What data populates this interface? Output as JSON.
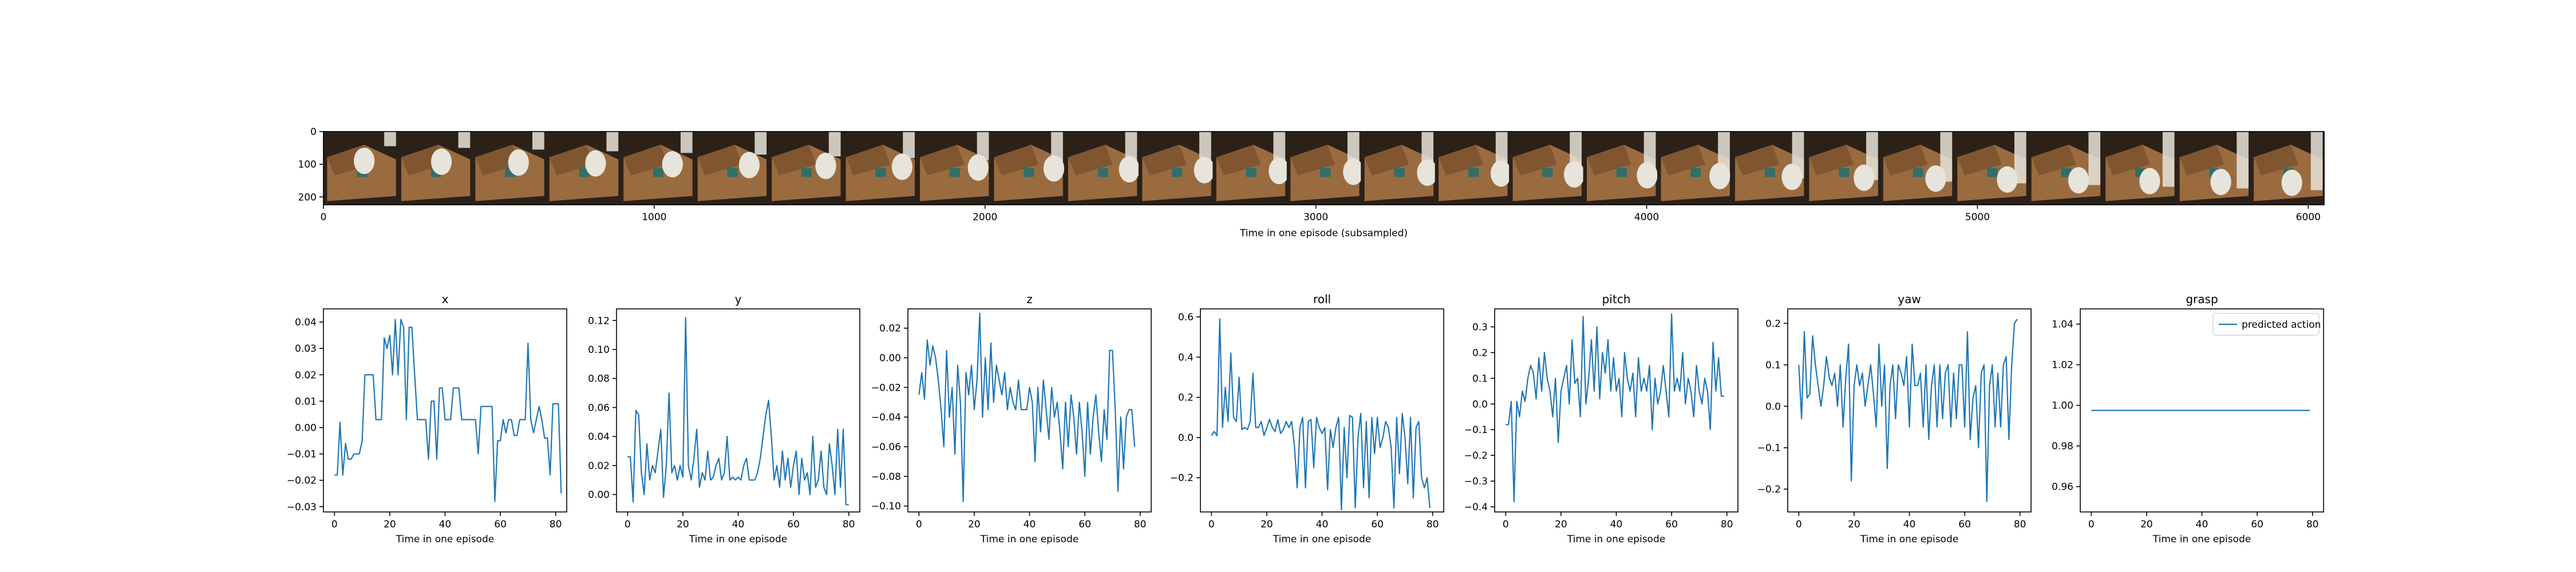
{
  "chart_data": [
    {
      "type": "image-strip",
      "xlabel": "Time in one episode (subsampled)",
      "xticks": [
        0,
        1000,
        2000,
        3000,
        4000,
        5000,
        6000
      ],
      "yticks": [
        0,
        100,
        200
      ],
      "xlim": [
        0,
        6048
      ],
      "ylim": [
        224,
        0
      ],
      "frame_count": 27,
      "image_colors": {
        "box": "#9a6b3f",
        "box_dark": "#6b4627",
        "arm": "#e7e4dc",
        "dark": "#2b2119",
        "label": "#2f6f6a"
      }
    },
    {
      "type": "line",
      "title": "x",
      "xlabel": "Time in one episode",
      "xticks": [
        0,
        20,
        40,
        60,
        80
      ],
      "yticks": [
        -0.03,
        -0.02,
        -0.01,
        0.0,
        0.01,
        0.02,
        0.03,
        0.04
      ],
      "ytick_labels": [
        "−0.03",
        "−0.02",
        "−0.01",
        "0.00",
        "0.01",
        "0.02",
        "0.03",
        "0.04"
      ],
      "xlim": [
        -4,
        84
      ],
      "ylim": [
        -0.032,
        0.045
      ],
      "series": [
        {
          "values": [
            -0.018,
            -0.018,
            0.002,
            -0.018,
            -0.006,
            -0.012,
            -0.012,
            -0.01,
            -0.01,
            -0.01,
            -0.005,
            0.02,
            0.02,
            0.02,
            0.02,
            0.003,
            0.003,
            0.003,
            0.034,
            0.03,
            0.035,
            0.02,
            0.041,
            0.02,
            0.041,
            0.038,
            0.003,
            0.038,
            0.038,
            0.02,
            0.003,
            0.003,
            0.003,
            0.003,
            -0.012,
            0.01,
            0.01,
            -0.012,
            0.015,
            0.015,
            0.003,
            0.003,
            0.003,
            0.015,
            0.015,
            0.015,
            0.003,
            0.003,
            0.003,
            0.003,
            0.003,
            0.003,
            -0.01,
            0.008,
            0.008,
            0.008,
            0.008,
            0.008,
            -0.028,
            -0.005,
            -0.005,
            0.003,
            -0.002,
            0.003,
            0.003,
            -0.003,
            -0.003,
            0.003,
            0.003,
            0.003,
            0.032,
            0.003,
            -0.002,
            0.003,
            0.008,
            0.003,
            -0.004,
            -0.004,
            -0.018,
            0.009,
            0.009,
            0.009,
            -0.025
          ]
        }
      ]
    },
    {
      "type": "line",
      "title": "y",
      "xlabel": "Time in one episode",
      "xticks": [
        0,
        20,
        40,
        60,
        80
      ],
      "yticks": [
        0.0,
        0.02,
        0.04,
        0.06,
        0.08,
        0.1,
        0.12
      ],
      "ytick_labels": [
        "0.00",
        "0.02",
        "0.04",
        "0.06",
        "0.08",
        "0.10",
        "0.12"
      ],
      "xlim": [
        -4,
        84
      ],
      "ylim": [
        -0.012,
        0.128
      ],
      "series": [
        {
          "values": [
            0.026,
            0.026,
            -0.005,
            0.058,
            0.055,
            0.015,
            0.0,
            0.035,
            0.01,
            0.02,
            0.015,
            0.03,
            0.045,
            -0.002,
            0.02,
            0.07,
            0.015,
            0.02,
            0.01,
            0.02,
            0.012,
            0.122,
            0.02,
            0.01,
            0.025,
            0.045,
            0.005,
            0.015,
            0.01,
            0.03,
            0.01,
            0.012,
            0.02,
            0.025,
            0.01,
            0.015,
            0.04,
            0.01,
            0.012,
            0.01,
            0.012,
            0.01,
            0.02,
            0.025,
            0.01,
            0.01,
            0.01,
            0.015,
            0.025,
            0.04,
            0.055,
            0.065,
            0.04,
            0.01,
            0.02,
            0.005,
            0.03,
            0.01,
            0.025,
            0.005,
            0.02,
            0.03,
            0.0,
            0.025,
            0.01,
            0.015,
            0.0,
            0.04,
            0.005,
            0.01,
            0.03,
            0.005,
            0.0,
            0.035,
            0.02,
            0.0,
            0.045,
            0.005,
            0.045,
            -0.007,
            -0.007
          ]
        }
      ]
    },
    {
      "type": "line",
      "title": "z",
      "xlabel": "Time in one episode",
      "xticks": [
        0,
        20,
        40,
        60,
        80
      ],
      "yticks": [
        -0.1,
        -0.08,
        -0.06,
        -0.04,
        -0.02,
        0.0,
        0.02
      ],
      "ytick_labels": [
        "−0.10",
        "−0.08",
        "−0.06",
        "−0.04",
        "−0.02",
        "0.00",
        "0.02"
      ],
      "xlim": [
        -4,
        84
      ],
      "ylim": [
        -0.104,
        0.033
      ],
      "series": [
        {
          "values": [
            -0.025,
            -0.01,
            -0.028,
            0.012,
            -0.005,
            0.008,
            0.0,
            -0.015,
            -0.035,
            -0.06,
            0.005,
            -0.04,
            -0.02,
            -0.065,
            -0.005,
            -0.03,
            -0.097,
            -0.01,
            -0.025,
            -0.005,
            -0.035,
            -0.015,
            0.03,
            -0.04,
            0.0,
            -0.035,
            0.01,
            -0.03,
            -0.005,
            -0.015,
            -0.025,
            -0.01,
            -0.035,
            -0.02,
            -0.03,
            -0.035,
            -0.015,
            -0.035,
            -0.035,
            -0.035,
            -0.02,
            -0.03,
            -0.07,
            -0.02,
            -0.05,
            -0.015,
            -0.035,
            -0.055,
            -0.02,
            -0.04,
            -0.03,
            -0.05,
            -0.075,
            -0.03,
            -0.06,
            -0.025,
            -0.04,
            -0.065,
            -0.03,
            -0.05,
            -0.08,
            -0.03,
            -0.065,
            -0.04,
            -0.025,
            -0.05,
            -0.07,
            -0.035,
            -0.055,
            0.005,
            0.005,
            -0.035,
            -0.09,
            -0.04,
            -0.075,
            -0.04,
            -0.035,
            -0.035,
            -0.06
          ]
        }
      ]
    },
    {
      "type": "line",
      "title": "roll",
      "xlabel": "Time in one episode",
      "xticks": [
        0,
        20,
        40,
        60,
        80
      ],
      "yticks": [
        -0.2,
        0.0,
        0.2,
        0.4,
        0.6
      ],
      "ytick_labels": [
        "−0.2",
        "0.0",
        "0.2",
        "0.4",
        "0.6"
      ],
      "xlim": [
        -4,
        84
      ],
      "ylim": [
        -0.37,
        0.64
      ],
      "series": [
        {
          "values": [
            0.01,
            0.03,
            0.01,
            0.59,
            0.05,
            0.25,
            0.08,
            0.42,
            0.1,
            0.08,
            0.3,
            0.04,
            0.05,
            0.04,
            0.08,
            0.32,
            0.05,
            0.05,
            0.08,
            0.01,
            0.05,
            0.09,
            0.05,
            0.03,
            0.09,
            0.02,
            0.04,
            0.08,
            0.05,
            0.08,
            -0.04,
            -0.25,
            0.05,
            0.1,
            -0.25,
            0.08,
            0.09,
            -0.15,
            0.1,
            0.05,
            0.02,
            0.05,
            -0.26,
            0.04,
            -0.05,
            0.05,
            0.1,
            -0.36,
            0.05,
            -0.2,
            0.11,
            0.1,
            -0.35,
            0.0,
            0.12,
            -0.25,
            0.08,
            -0.3,
            0.1,
            -0.08,
            0.1,
            -0.05,
            0.0,
            0.08,
            0.05,
            -0.05,
            -0.35,
            0.1,
            -0.18,
            0.12,
            0.0,
            -0.23,
            0.1,
            -0.3,
            0.05,
            0.08,
            -0.2,
            -0.25,
            -0.2,
            -0.35
          ]
        }
      ]
    },
    {
      "type": "line",
      "title": "pitch",
      "xlabel": "Time in one episode",
      "xticks": [
        0,
        20,
        40,
        60,
        80
      ],
      "yticks": [
        -0.4,
        -0.3,
        -0.2,
        -0.1,
        0.0,
        0.1,
        0.2,
        0.3
      ],
      "ytick_labels": [
        "−0.4",
        "−0.3",
        "−0.2",
        "−0.1",
        "0.0",
        "0.1",
        "0.2",
        "0.3"
      ],
      "xlim": [
        -4,
        84
      ],
      "ylim": [
        -0.42,
        0.37
      ],
      "series": [
        {
          "values": [
            -0.08,
            -0.08,
            0.01,
            -0.38,
            0.01,
            -0.05,
            0.05,
            0.01,
            0.1,
            0.15,
            0.12,
            0.02,
            0.18,
            0.05,
            0.2,
            0.1,
            0.05,
            -0.05,
            0.1,
            -0.15,
            0.05,
            0.1,
            0.15,
            0.0,
            0.25,
            0.08,
            0.1,
            -0.05,
            0.34,
            0.0,
            0.1,
            0.25,
            0.05,
            0.3,
            0.02,
            0.2,
            0.12,
            0.25,
            0.05,
            0.18,
            0.05,
            0.1,
            -0.05,
            0.2,
            0.1,
            0.05,
            0.12,
            -0.05,
            0.18,
            0.05,
            0.1,
            0.05,
            0.15,
            -0.1,
            0.1,
            0.0,
            0.05,
            0.15,
            0.05,
            -0.05,
            0.35,
            0.05,
            0.1,
            0.05,
            0.2,
            0.0,
            0.1,
            0.05,
            -0.05,
            0.15,
            0.05,
            0.0,
            0.1,
            0.05,
            -0.1,
            0.24,
            0.05,
            0.18,
            0.03,
            0.03
          ]
        }
      ]
    },
    {
      "type": "line",
      "title": "yaw",
      "xlabel": "Time in one episode",
      "xticks": [
        0,
        20,
        40,
        60,
        80
      ],
      "yticks": [
        -0.2,
        -0.1,
        0.0,
        0.1,
        0.2
      ],
      "ytick_labels": [
        "−0.2",
        "−0.1",
        "0.0",
        "0.1",
        "0.2"
      ],
      "xlim": [
        -4,
        84
      ],
      "ylim": [
        -0.255,
        0.235
      ],
      "series": [
        {
          "values": [
            0.1,
            -0.03,
            0.18,
            0.02,
            0.03,
            0.17,
            0.1,
            0.05,
            0.0,
            0.05,
            0.12,
            0.07,
            0.05,
            0.08,
            0.0,
            0.1,
            -0.05,
            0.07,
            0.15,
            -0.18,
            0.05,
            0.1,
            0.05,
            0.08,
            0.0,
            0.05,
            0.1,
            0.03,
            -0.05,
            0.15,
            0.0,
            0.1,
            -0.15,
            0.05,
            0.1,
            -0.03,
            0.1,
            0.08,
            0.05,
            0.12,
            -0.05,
            0.15,
            0.05,
            0.05,
            0.08,
            -0.05,
            0.1,
            -0.08,
            0.05,
            0.1,
            -0.05,
            0.1,
            -0.03,
            0.08,
            0.1,
            -0.05,
            0.08,
            -0.03,
            0.1,
            0.1,
            -0.05,
            0.18,
            -0.08,
            0.02,
            0.05,
            -0.1,
            0.08,
            0.1,
            -0.23,
            0.05,
            0.1,
            -0.05,
            0.08,
            -0.05,
            0.1,
            0.12,
            -0.08,
            0.1,
            0.2,
            0.21
          ]
        }
      ]
    },
    {
      "type": "line",
      "title": "grasp",
      "xlabel": "Time in one episode",
      "xticks": [
        0,
        20,
        40,
        60,
        80
      ],
      "yticks": [
        0.96,
        0.98,
        1.0,
        1.02,
        1.04
      ],
      "ytick_labels": [
        "0.96",
        "0.98",
        "1.00",
        "1.02",
        "1.04"
      ],
      "xlim": [
        -4,
        84
      ],
      "ylim": [
        0.9475,
        1.0475
      ],
      "legend": "top-right",
      "series": [
        {
          "name": "predicted action",
          "x": [
            0,
            79
          ],
          "values": [
            0.9975,
            0.9975
          ]
        }
      ]
    }
  ]
}
